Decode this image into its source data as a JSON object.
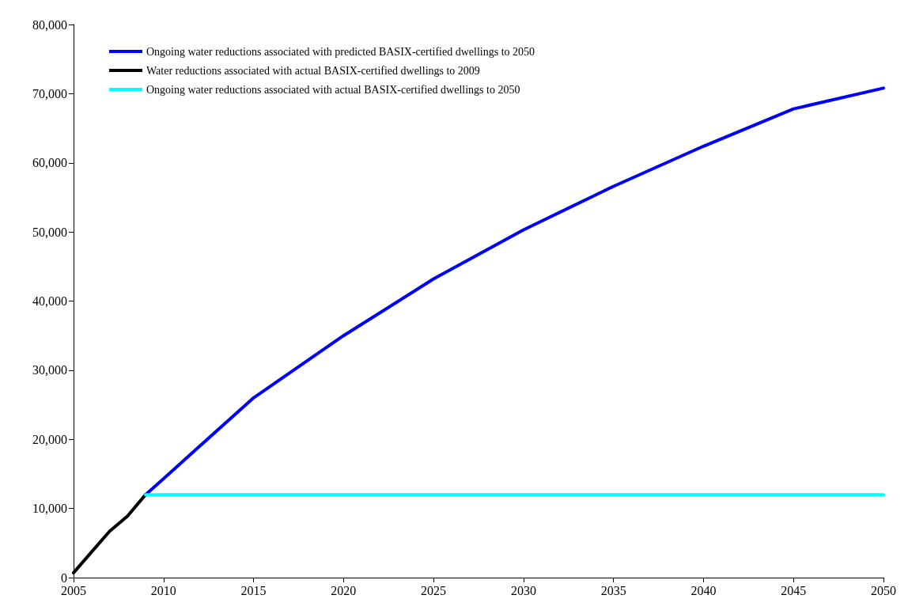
{
  "chart_data": {
    "type": "line",
    "legend": "top left",
    "grid": false,
    "marker": "none",
    "line_style": "solid",
    "xlim": [
      2005,
      2050
    ],
    "xticks": [
      2005,
      2010,
      2015,
      2020,
      2025,
      2030,
      2035,
      2040,
      2045,
      2050
    ],
    "ylim": [
      0,
      80000
    ],
    "yticks": [
      {
        "value": 0,
        "label": "0"
      },
      {
        "value": 10000,
        "label": "10,000"
      },
      {
        "value": 20000,
        "label": "20,000"
      },
      {
        "value": 30000,
        "label": "30,000"
      },
      {
        "value": 40000,
        "label": "40,000"
      },
      {
        "value": 50000,
        "label": "50,000"
      },
      {
        "value": 60000,
        "label": "60,000"
      },
      {
        "value": 70000,
        "label": "70,000"
      },
      {
        "value": 80000,
        "label": "80,000"
      }
    ],
    "series": [
      {
        "name": "Ongoing water reductions associated with predicted BASIX-certified dwellings to 2050",
        "color": "#0000ff",
        "x": [
          2009,
          2010,
          2012,
          2015,
          2020,
          2025,
          2030,
          2035,
          2040,
          2045,
          2050
        ],
        "values": [
          12000,
          14300,
          19000,
          26000,
          35000,
          43200,
          50300,
          56600,
          62400,
          67800,
          70800
        ]
      },
      {
        "name": "Water reductions associated with actual BASIX-certified dwellings to 2009",
        "color": "#000000",
        "x": [
          2005,
          2006,
          2007,
          2008,
          2009
        ],
        "values": [
          700,
          3700,
          6700,
          8900,
          12000
        ]
      },
      {
        "name": "Ongoing water reductions associated with actual BASIX-certified dwellings to 2050",
        "color": "#00ffff",
        "x": [
          2009,
          2050
        ],
        "values": [
          12000,
          12000
        ]
      }
    ]
  }
}
